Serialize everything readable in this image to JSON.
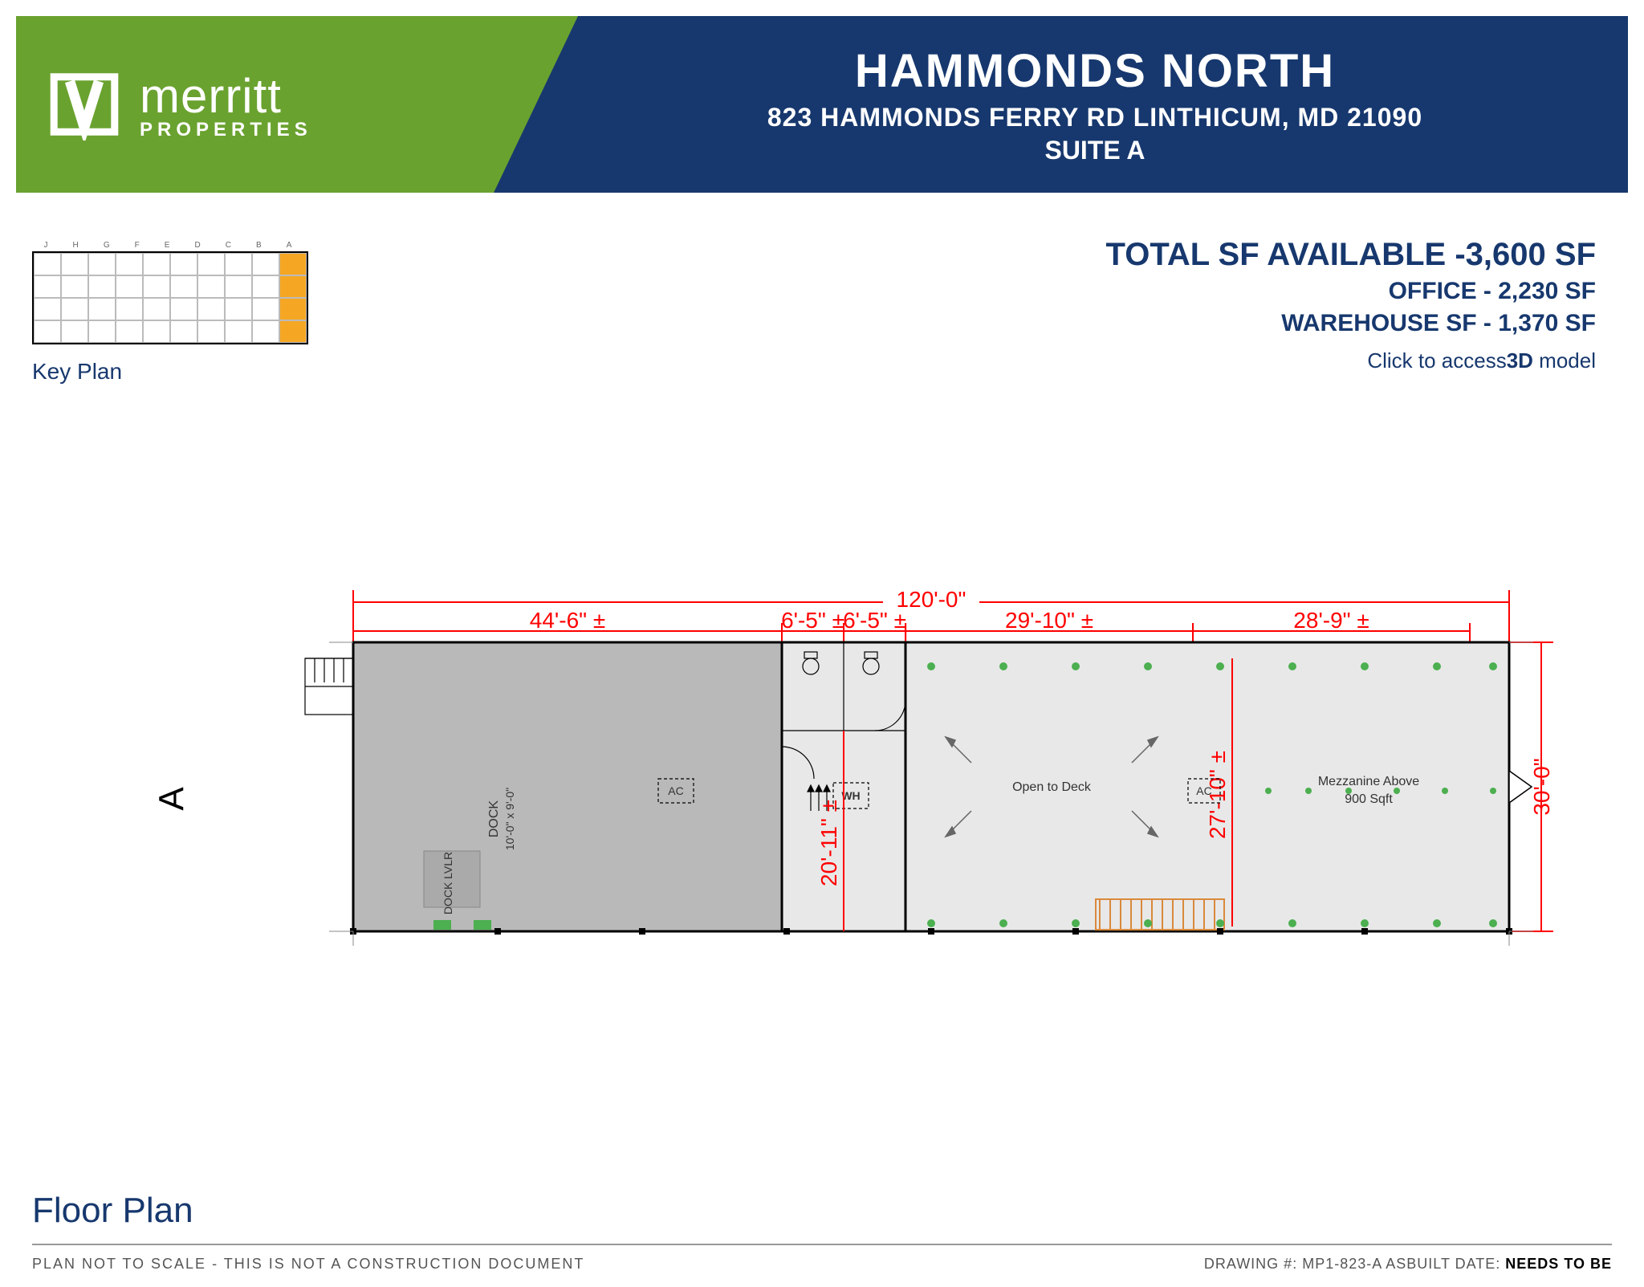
{
  "colors": {
    "brand_blue": "#17386e",
    "brand_green": "#6aa22f",
    "dim_red": "#ff0000",
    "keyplan_highlight": "#f5a623",
    "warehouse_fill": "#b9b9b9",
    "office_fill": "#e8e8e8",
    "sprinkler_green": "#4caf50",
    "stair_orange": "#d9893b"
  },
  "logo": {
    "brand": "merritt",
    "sub": "PROPERTIES"
  },
  "header": {
    "title": "HAMMONDS NORTH",
    "address": "823 HAMMONDS FERRY RD  LINTHICUM, MD 21090",
    "suite": "SUITE A"
  },
  "info": {
    "total_label": "TOTAL SF AVAILABLE -",
    "total_value": "3,600 SF",
    "office_label": "OFFICE - ",
    "office_value": "2,230 SF",
    "warehouse_label": "WAREHOUSE SF - ",
    "warehouse_value": "1,370 SF",
    "link_prefix": "Click to access",
    "link_bold": "3D",
    "link_suffix": " model"
  },
  "keyplan": {
    "title": "Key Plan",
    "cols": 10,
    "rows": 4,
    "col_labels": [
      "J",
      "H",
      "G",
      "F",
      "E",
      "D",
      "C",
      "B",
      "A"
    ],
    "highlight_col": 9
  },
  "floorplan": {
    "overall_width_label": "120'-0\"",
    "overall_depth_label": "30'-0\"",
    "suite_letter": "A",
    "segments_top": [
      {
        "label": "44'-6\" ±",
        "span": 44.5
      },
      {
        "label": "6'-5\" ±",
        "span": 6.42
      },
      {
        "label": "6'-5\" ±",
        "span": 6.42
      },
      {
        "label": "29'-10\" ±",
        "span": 29.83
      },
      {
        "label": "28'-9\" ±",
        "span": 28.75
      }
    ],
    "interior_dims": {
      "depth_20_11": "20'-11\" ±",
      "depth_27_10": "27'-10\" ±"
    },
    "rooms": {
      "dock": {
        "label": "DOCK",
        "size": "10'-0\" x 9'-0\""
      },
      "ac_left": {
        "label": "AC"
      },
      "wh": {
        "label": "WH"
      },
      "open_deck": {
        "label": "Open to Deck"
      },
      "ac_right": {
        "label": "AC"
      },
      "mezz": {
        "label": "Mezzanine Above",
        "sub": "900 Sqft"
      }
    }
  },
  "bottom": {
    "title": "Floor Plan",
    "disclaimer": "PLAN NOT TO SCALE - THIS IS NOT A CONSTRUCTION DOCUMENT",
    "drawing_prefix": "DRAWING #: ",
    "drawing_no": "MP1-823-A",
    "asbuilt_prefix": "  ASBUILT DATE: ",
    "asbuilt_value": "NEEDS TO BE"
  }
}
